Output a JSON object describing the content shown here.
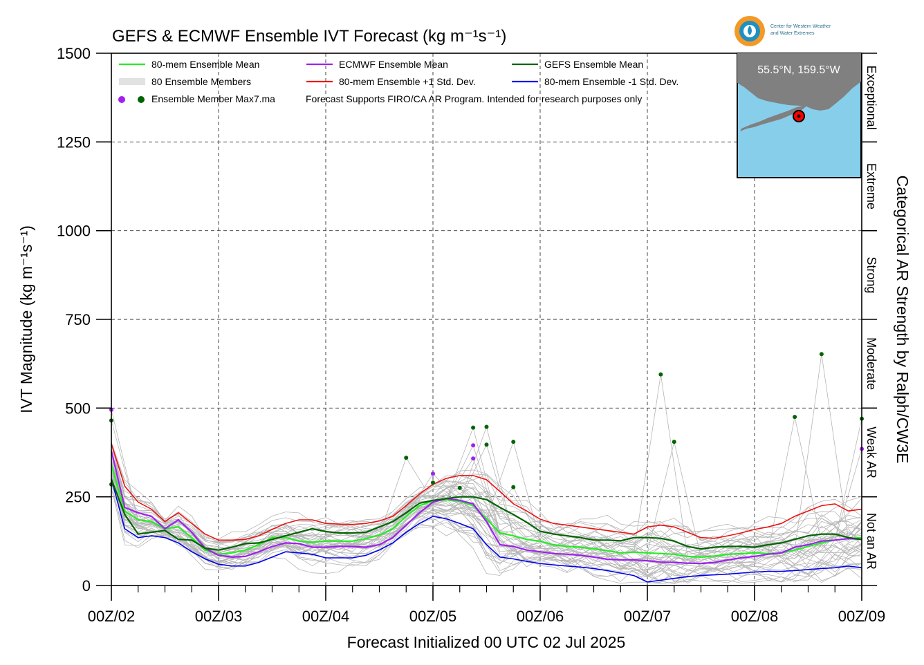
{
  "chart_data": {
    "type": "line",
    "title": "GEFS & ECMWF Ensemble IVT Forecast (kg m⁻¹s⁻¹)",
    "xlabel": "Forecast Initialized 00 UTC 02 Jul 2025",
    "ylabel": "IVT Magnitude (kg m⁻¹s⁻¹)",
    "right_axis_label": "Categorical AR Strength by Ralph/CW3E",
    "x_unit": "days since 00Z/02",
    "xlim": [
      0,
      7
    ],
    "ylim": [
      0,
      1500
    ],
    "y_ticks": [
      0,
      250,
      500,
      750,
      1000,
      1250,
      1500
    ],
    "x_tick_labels": [
      "00Z/02",
      "00Z/03",
      "00Z/04",
      "00Z/05",
      "00Z/06",
      "00Z/07",
      "00Z/08",
      "00Z/09"
    ],
    "grid": true,
    "categories": [
      {
        "label": "Not an AR",
        "from": 0,
        "to": 250
      },
      {
        "label": "Weak AR",
        "from": 250,
        "to": 500
      },
      {
        "label": "Moderate",
        "from": 500,
        "to": 750
      },
      {
        "label": "Strong",
        "from": 750,
        "to": 1000
      },
      {
        "label": "Extreme",
        "from": 1000,
        "to": 1250
      },
      {
        "label": "Exceptional",
        "from": 1250,
        "to": 1500
      }
    ],
    "legend": [
      {
        "label": "80-mem Ensemble Mean",
        "color": "#22ee22"
      },
      {
        "label": "ECMWF Ensemble Mean",
        "color": "#a020f0"
      },
      {
        "label": "GEFS Ensemble Mean",
        "color": "#006400"
      },
      {
        "label": "80 Ensemble Members",
        "color": "#b0b0b0"
      },
      {
        "label": "80-mem Ensemble +1 Std. Dev.",
        "color": "#ee1111"
      },
      {
        "label": "80-mem Ensemble -1 Std. Dev.",
        "color": "#0000ee"
      },
      {
        "label": "Ensemble Member Max7.ma",
        "color": "#a020f0"
      }
    ],
    "note": "Forecast Supports FIRO/CA AR Program. Intended for research purposes only",
    "series": [
      {
        "name": "80-mem Ensemble Mean",
        "color": "#22ee22",
        "x": [
          0,
          0.125,
          0.25,
          0.375,
          0.5,
          0.625,
          0.75,
          0.875,
          1,
          1.125,
          1.25,
          1.375,
          1.5,
          1.625,
          1.75,
          1.875,
          2,
          2.125,
          2.25,
          2.375,
          2.5,
          2.625,
          2.75,
          2.875,
          3,
          3.125,
          3.25,
          3.375,
          3.5,
          3.625,
          3.75,
          3.875,
          4,
          4.125,
          4.25,
          4.375,
          4.5,
          4.625,
          4.75,
          4.875,
          5,
          5.125,
          5.25,
          5.375,
          5.5,
          5.625,
          5.75,
          5.875,
          6,
          6.125,
          6.25,
          6.375,
          6.5,
          6.625,
          6.75,
          6.875,
          7
        ],
        "y": [
          340,
          210,
          185,
          180,
          160,
          165,
          135,
          100,
          88,
          92,
          100,
          115,
          135,
          135,
          125,
          122,
          125,
          125,
          125,
          132,
          142,
          160,
          195,
          225,
          238,
          242,
          237,
          225,
          188,
          148,
          140,
          130,
          125,
          115,
          110,
          108,
          103,
          98,
          92,
          94,
          92,
          90,
          88,
          82,
          80,
          83,
          88,
          90,
          92,
          90,
          92,
          100,
          110,
          120,
          128,
          132,
          135
        ]
      },
      {
        "name": "ECMWF Ensemble Mean",
        "color": "#a020f0",
        "x": [
          0,
          0.125,
          0.25,
          0.375,
          0.5,
          0.625,
          0.75,
          0.875,
          1,
          1.125,
          1.25,
          1.375,
          1.5,
          1.625,
          1.75,
          1.875,
          2,
          2.125,
          2.25,
          2.375,
          2.5,
          2.625,
          2.75,
          2.875,
          3,
          3.125,
          3.25,
          3.375,
          3.5,
          3.625,
          3.75,
          3.875,
          4,
          4.125,
          4.25,
          4.375,
          4.5,
          4.625,
          4.75,
          4.875,
          5,
          5.125,
          5.25,
          5.375,
          5.5,
          5.625,
          5.75,
          5.875,
          6,
          6.125,
          6.25,
          6.375,
          6.5,
          6.625,
          6.75,
          6.875,
          7
        ],
        "y": [
          380,
          220,
          205,
          195,
          160,
          185,
          150,
          105,
          85,
          80,
          82,
          95,
          110,
          120,
          118,
          108,
          108,
          110,
          110,
          108,
          115,
          135,
          170,
          205,
          235,
          245,
          240,
          230,
          180,
          115,
          110,
          100,
          95,
          90,
          88,
          85,
          80,
          74,
          72,
          72,
          70,
          66,
          65,
          63,
          62,
          65,
          72,
          78,
          82,
          88,
          92,
          108,
          115,
          125,
          128,
          132,
          130
        ]
      },
      {
        "name": "GEFS Ensemble Mean",
        "color": "#006400",
        "x": [
          0,
          0.125,
          0.25,
          0.375,
          0.5,
          0.625,
          0.75,
          0.875,
          1,
          1.125,
          1.25,
          1.375,
          1.5,
          1.625,
          1.75,
          1.875,
          2,
          2.125,
          2.25,
          2.375,
          2.5,
          2.625,
          2.75,
          2.875,
          3,
          3.125,
          3.25,
          3.375,
          3.5,
          3.625,
          3.75,
          3.875,
          4,
          4.125,
          4.25,
          4.375,
          4.5,
          4.625,
          4.75,
          4.875,
          5,
          5.125,
          5.25,
          5.375,
          5.5,
          5.625,
          5.75,
          5.875,
          6,
          6.125,
          6.25,
          6.375,
          6.5,
          6.625,
          6.75,
          6.875,
          7
        ],
        "y": [
          300,
          200,
          145,
          150,
          155,
          130,
          128,
          105,
          100,
          108,
          118,
          120,
          130,
          140,
          150,
          160,
          152,
          148,
          148,
          150,
          165,
          180,
          205,
          232,
          240,
          245,
          250,
          250,
          242,
          220,
          200,
          178,
          153,
          145,
          140,
          135,
          128,
          128,
          126,
          135,
          135,
          133,
          125,
          110,
          103,
          108,
          110,
          110,
          108,
          115,
          120,
          130,
          140,
          145,
          145,
          135,
          130
        ]
      },
      {
        "name": "80-mem Ensemble +1 Std. Dev.",
        "color": "#ee1111",
        "x": [
          0,
          0.125,
          0.25,
          0.375,
          0.5,
          0.625,
          0.75,
          0.875,
          1,
          1.125,
          1.25,
          1.375,
          1.5,
          1.625,
          1.75,
          1.875,
          2,
          2.125,
          2.25,
          2.375,
          2.5,
          2.625,
          2.75,
          2.875,
          3,
          3.125,
          3.25,
          3.375,
          3.5,
          3.625,
          3.75,
          3.875,
          4,
          4.125,
          4.25,
          4.375,
          4.5,
          4.625,
          4.75,
          4.875,
          5,
          5.125,
          5.25,
          5.375,
          5.5,
          5.625,
          5.75,
          5.875,
          6,
          6.125,
          6.25,
          6.375,
          6.5,
          6.625,
          6.75,
          6.875,
          7
        ],
        "y": [
          400,
          280,
          235,
          215,
          180,
          205,
          175,
          145,
          128,
          128,
          130,
          140,
          158,
          175,
          185,
          185,
          175,
          173,
          172,
          175,
          182,
          195,
          225,
          258,
          285,
          302,
          310,
          310,
          298,
          265,
          230,
          210,
          187,
          175,
          170,
          165,
          160,
          155,
          150,
          145,
          165,
          170,
          165,
          150,
          135,
          133,
          140,
          148,
          158,
          165,
          175,
          195,
          210,
          225,
          230,
          210,
          215
        ]
      },
      {
        "name": "80-mem Ensemble -1 Std. Dev.",
        "color": "#0000ee",
        "x": [
          0,
          0.125,
          0.25,
          0.375,
          0.5,
          0.625,
          0.75,
          0.875,
          1,
          1.125,
          1.25,
          1.375,
          1.5,
          1.625,
          1.75,
          1.875,
          2,
          2.125,
          2.25,
          2.375,
          2.5,
          2.625,
          2.75,
          2.875,
          3,
          3.125,
          3.25,
          3.375,
          3.5,
          3.625,
          3.75,
          3.875,
          4,
          4.125,
          4.25,
          4.375,
          4.5,
          4.625,
          4.75,
          4.875,
          5,
          5.125,
          5.25,
          5.375,
          5.5,
          5.625,
          5.75,
          5.875,
          6,
          6.125,
          6.25,
          6.375,
          6.5,
          6.625,
          6.75,
          6.875,
          7
        ],
        "y": [
          300,
          160,
          135,
          140,
          135,
          120,
          95,
          75,
          60,
          55,
          55,
          65,
          80,
          95,
          92,
          88,
          78,
          78,
          78,
          85,
          100,
          120,
          150,
          175,
          195,
          188,
          175,
          160,
          115,
          80,
          75,
          68,
          62,
          58,
          55,
          52,
          48,
          42,
          35,
          28,
          10,
          15,
          20,
          25,
          28,
          30,
          32,
          35,
          38,
          40,
          40,
          42,
          45,
          48,
          50,
          55,
          50
        ]
      },
      {
        "name": "Ensemble Member Max7.ma",
        "type": "scatter",
        "points": [
          {
            "x": 0,
            "y": 495,
            "color": "#a020f0"
          },
          {
            "x": 0,
            "y": 465,
            "color": "#006400"
          },
          {
            "x": 0,
            "y": 285,
            "color": "#006400"
          },
          {
            "x": 2.75,
            "y": 360,
            "color": "#006400"
          },
          {
            "x": 3,
            "y": 315,
            "color": "#a020f0"
          },
          {
            "x": 3,
            "y": 290,
            "color": "#006400"
          },
          {
            "x": 3.25,
            "y": 275,
            "color": "#006400"
          },
          {
            "x": 3.375,
            "y": 445,
            "color": "#006400"
          },
          {
            "x": 3.375,
            "y": 395,
            "color": "#a020f0"
          },
          {
            "x": 3.375,
            "y": 358,
            "color": "#a020f0"
          },
          {
            "x": 3.5,
            "y": 447,
            "color": "#006400"
          },
          {
            "x": 3.5,
            "y": 397,
            "color": "#006400"
          },
          {
            "x": 3.75,
            "y": 405,
            "color": "#006400"
          },
          {
            "x": 3.75,
            "y": 277,
            "color": "#006400"
          },
          {
            "x": 5.125,
            "y": 595,
            "color": "#006400"
          },
          {
            "x": 5.25,
            "y": 405,
            "color": "#006400"
          },
          {
            "x": 6.375,
            "y": 475,
            "color": "#006400"
          },
          {
            "x": 6.625,
            "y": 652,
            "color": "#006400"
          },
          {
            "x": 7,
            "y": 470,
            "color": "#006400"
          },
          {
            "x": 7,
            "y": 385,
            "color": "#a020f0"
          }
        ]
      }
    ]
  },
  "inset_map": {
    "location_label": "55.5°N, 159.5°W",
    "land_color": "#808080",
    "water_color": "#87ceeb",
    "marker_color": "#ff0000"
  },
  "logo": {
    "name": "cw3e-logo-icon",
    "text_line1": "Center for Western Weather",
    "text_line2": "and Water Extremes"
  }
}
